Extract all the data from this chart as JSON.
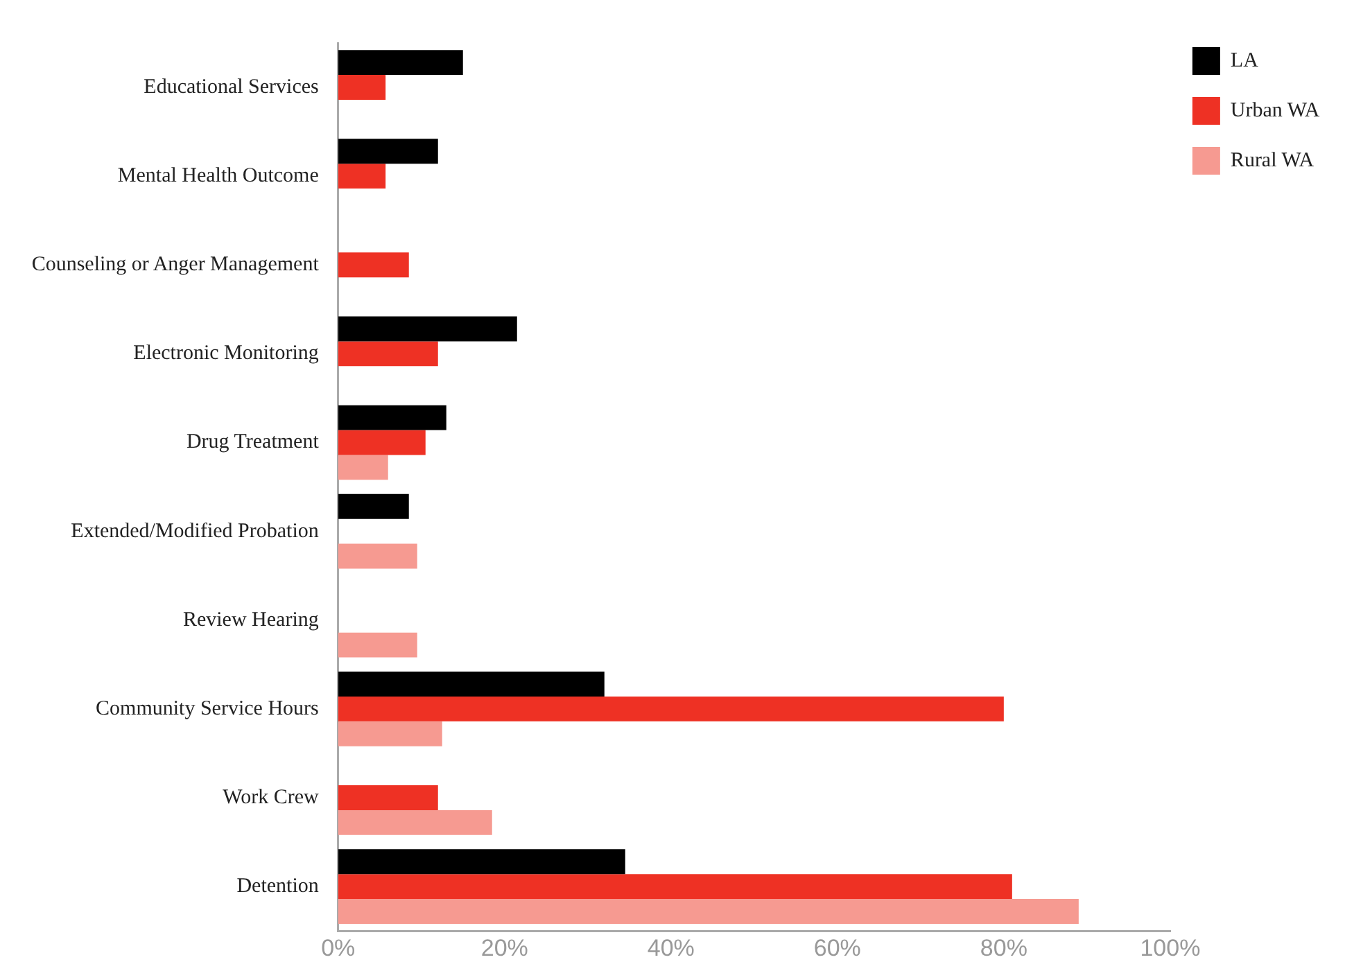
{
  "chart_data": {
    "type": "bar",
    "orientation": "horizontal",
    "categories": [
      "Educational Services",
      "Mental Health Outcome",
      "Counseling or Anger Management",
      "Electronic Monitoring",
      "Drug Treatment",
      "Extended/Modified Probation",
      "Review Hearing",
      "Community Service Hours",
      "Work Crew",
      "Detention"
    ],
    "series": [
      {
        "name": "LA",
        "color": "#000000",
        "values": [
          15,
          12,
          null,
          21.5,
          13,
          8.5,
          null,
          32,
          null,
          34.5
        ]
      },
      {
        "name": "Urban WA",
        "color": "#ee3124",
        "values": [
          5.7,
          5.7,
          8.5,
          12,
          10.5,
          null,
          null,
          80,
          12,
          81
        ]
      },
      {
        "name": "Rural WA",
        "color": "#f69a91",
        "values": [
          null,
          null,
          null,
          null,
          6,
          9.5,
          9.5,
          12.5,
          18.5,
          89
        ]
      }
    ],
    "xlim": [
      0,
      100
    ],
    "xticks": [
      {
        "value": 0,
        "label": "0%"
      },
      {
        "value": 20,
        "label": "20%"
      },
      {
        "value": 40,
        "label": "40%"
      },
      {
        "value": 60,
        "label": "60%"
      },
      {
        "value": 80,
        "label": "80%"
      },
      {
        "value": 100,
        "label": "100%"
      }
    ],
    "grid": false,
    "legend": "top right"
  }
}
